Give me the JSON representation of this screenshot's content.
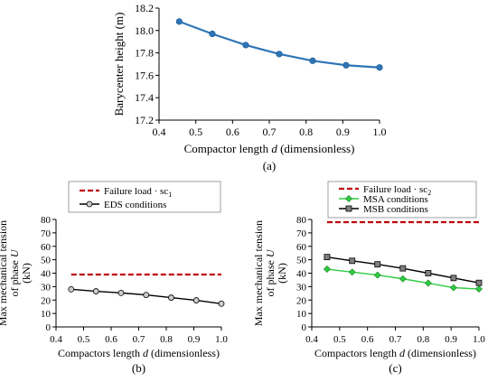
{
  "chart_data": [
    {
      "type": "line",
      "panel_label": "(a)",
      "title": "",
      "xlabel": "Compactor length",
      "xlabel_var": "d",
      "xlabel_suffix": "(dimensionless)",
      "ylabel": "Barycenter height (m)",
      "xlim": [
        0.4,
        1.0
      ],
      "ylim": [
        17.2,
        18.2
      ],
      "x_ticks": [
        "0.4",
        "0.5",
        "0.6",
        "0.7",
        "0.8",
        "0.9",
        "1.0"
      ],
      "y_ticks": [
        "17.2",
        "17.4",
        "17.6",
        "17.8",
        "18.0",
        "18.2"
      ],
      "grid": false,
      "legend": "none",
      "series": [
        {
          "color": "#2e75b6",
          "marker": "circle",
          "x": [
            0.455,
            0.545,
            0.636,
            0.727,
            0.818,
            0.909,
            1.0
          ],
          "y": [
            18.08,
            17.97,
            17.87,
            17.79,
            17.73,
            17.69,
            17.67
          ]
        }
      ]
    },
    {
      "type": "line",
      "panel_label": "(b)",
      "title": "",
      "xlabel": "Compactors length",
      "xlabel_var": "d",
      "xlabel_suffix": "(dimensionless)",
      "ylabel_line1": "Max mechanical tension",
      "ylabel_line2": "of phase",
      "ylabel_var": "U",
      "ylabel_line3": "(kN)",
      "xlim": [
        0.4,
        1.0
      ],
      "ylim": [
        0,
        80
      ],
      "x_ticks": [
        "0.4",
        "0.5",
        "0.6",
        "0.7",
        "0.8",
        "0.9",
        "1.0"
      ],
      "y_ticks": [
        "0",
        "10",
        "20",
        "30",
        "40",
        "50",
        "60",
        "70",
        "80"
      ],
      "grid": false,
      "legend": "top",
      "series": [
        {
          "name": "Failure load · sc",
          "name_sub": "1",
          "color": "#c00000",
          "style": "dashed",
          "marker": "none",
          "x": [
            0.455,
            1.0
          ],
          "y": [
            39,
            39
          ]
        },
        {
          "name": "EDS conditions",
          "color": "#000000",
          "style": "solid",
          "marker": "circle",
          "x": [
            0.455,
            0.545,
            0.636,
            0.727,
            0.818,
            0.909,
            1.0
          ],
          "y": [
            28,
            26.5,
            25.3,
            23.8,
            21.8,
            19.8,
            17.3
          ]
        }
      ]
    },
    {
      "type": "line",
      "panel_label": "(c)",
      "title": "",
      "xlabel": "Compactors length",
      "xlabel_var": "d",
      "xlabel_suffix": "(dimensionless)",
      "ylabel_line1": "Max mechanical tension",
      "ylabel_line2": "of phase",
      "ylabel_var": "U",
      "ylabel_line3": "(kN)",
      "xlim": [
        0.4,
        1.0
      ],
      "ylim": [
        0,
        80
      ],
      "x_ticks": [
        "0.4",
        "0.5",
        "0.6",
        "0.7",
        "0.8",
        "0.9",
        "1.0"
      ],
      "y_ticks": [
        "0",
        "10",
        "20",
        "30",
        "40",
        "50",
        "60",
        "70",
        "80"
      ],
      "grid": false,
      "legend": "top",
      "series": [
        {
          "name": "Failure load · sc",
          "name_sub": "2",
          "color": "#c00000",
          "style": "dashed",
          "marker": "none",
          "x": [
            0.455,
            1.0
          ],
          "y": [
            78,
            78
          ]
        },
        {
          "name": "MSA conditions",
          "color": "#2ecc40",
          "style": "solid",
          "marker": "diamond",
          "x": [
            0.455,
            0.545,
            0.636,
            0.727,
            0.818,
            0.909,
            1.0
          ],
          "y": [
            43,
            40.8,
            38.6,
            35.8,
            32.6,
            29.2,
            28.2
          ]
        },
        {
          "name": "MSB conditions",
          "color": "#000000",
          "style": "solid",
          "marker": "square",
          "x": [
            0.455,
            0.545,
            0.636,
            0.727,
            0.818,
            0.909,
            1.0
          ],
          "y": [
            52,
            49.2,
            46.6,
            43.6,
            40,
            36.4,
            32.8
          ]
        }
      ]
    }
  ]
}
